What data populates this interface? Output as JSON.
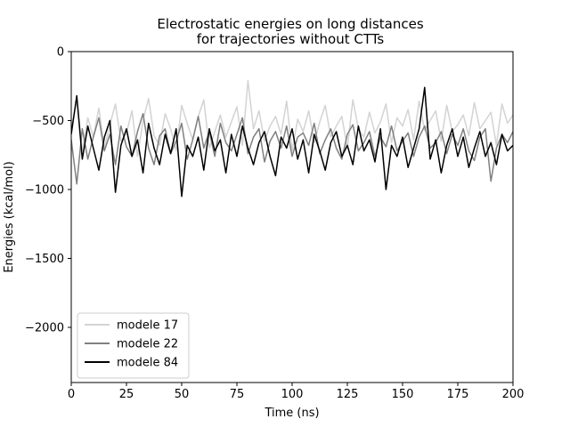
{
  "chart_data": {
    "type": "line",
    "title_line1": "Electrostatic energies on long distances",
    "title_line2": "for trajectories without CTTs",
    "xlabel": "Time (ns)",
    "ylabel": "Energies (kcal/mol)",
    "xlim": [
      0,
      200
    ],
    "ylim": [
      -2400,
      0
    ],
    "xticks": [
      0,
      25,
      50,
      75,
      100,
      125,
      150,
      175,
      200
    ],
    "xtick_labels": [
      "0",
      "25",
      "50",
      "75",
      "100",
      "125",
      "150",
      "175",
      "200"
    ],
    "yticks": [
      0,
      -500,
      -1000,
      -1500,
      -2000
    ],
    "ytick_labels": [
      "0",
      "−500",
      "−1000",
      "−1500",
      "−2000"
    ],
    "grid": false,
    "legend_position": "lower-left",
    "series": [
      {
        "name": "modele 17",
        "color": "#d3d3d3",
        "x": [
          0,
          2.5,
          5,
          7.5,
          10,
          12.5,
          15,
          17.5,
          20,
          22.5,
          25,
          27.5,
          30,
          32.5,
          35,
          37.5,
          40,
          42.5,
          45,
          47.5,
          50,
          52.5,
          55,
          57.5,
          60,
          62.5,
          65,
          67.5,
          70,
          72.5,
          75,
          77.5,
          80,
          82.5,
          85,
          87.5,
          90,
          92.5,
          95,
          97.5,
          100,
          102.5,
          105,
          107.5,
          110,
          112.5,
          115,
          117.5,
          120,
          122.5,
          125,
          127.5,
          130,
          132.5,
          135,
          137.5,
          140,
          142.5,
          145,
          147.5,
          150,
          152.5,
          155,
          157.5,
          160,
          162.5,
          165,
          167.5,
          170,
          172.5,
          175,
          177.5,
          180,
          182.5,
          185,
          187.5,
          190,
          192.5,
          195,
          197.5,
          200
        ],
        "y": [
          -560,
          -350,
          -720,
          -480,
          -620,
          -410,
          -700,
          -530,
          -380,
          -650,
          -590,
          -430,
          -760,
          -500,
          -340,
          -610,
          -680,
          -450,
          -560,
          -720,
          -390,
          -520,
          -640,
          -470,
          -350,
          -700,
          -580,
          -460,
          -620,
          -510,
          -400,
          -680,
          -210,
          -560,
          -430,
          -650,
          -540,
          -470,
          -600,
          -360,
          -720,
          -490,
          -580,
          -430,
          -660,
          -510,
          -390,
          -620,
          -540,
          -470,
          -700,
          -350,
          -560,
          -620,
          -440,
          -590,
          -510,
          -380,
          -660,
          -480,
          -540,
          -420,
          -640,
          -360,
          -570,
          -500,
          -430,
          -650,
          -390,
          -580,
          -530,
          -460,
          -610,
          -370,
          -560,
          -500,
          -440,
          -680,
          -380,
          -520,
          -460
        ]
      },
      {
        "name": "modele 22",
        "color": "#808080",
        "x": [
          0,
          2.5,
          5,
          7.5,
          10,
          12.5,
          15,
          17.5,
          20,
          22.5,
          25,
          27.5,
          30,
          32.5,
          35,
          37.5,
          40,
          42.5,
          45,
          47.5,
          50,
          52.5,
          55,
          57.5,
          60,
          62.5,
          65,
          67.5,
          70,
          72.5,
          75,
          77.5,
          80,
          82.5,
          85,
          87.5,
          90,
          92.5,
          95,
          97.5,
          100,
          102.5,
          105,
          107.5,
          110,
          112.5,
          115,
          117.5,
          120,
          122.5,
          125,
          127.5,
          130,
          132.5,
          135,
          137.5,
          140,
          142.5,
          145,
          147.5,
          150,
          152.5,
          155,
          157.5,
          160,
          162.5,
          165,
          167.5,
          170,
          172.5,
          175,
          177.5,
          180,
          182.5,
          185,
          187.5,
          190,
          192.5,
          195,
          197.5,
          200
        ],
        "y": [
          -640,
          -960,
          -560,
          -780,
          -620,
          -480,
          -720,
          -600,
          -820,
          -540,
          -690,
          -760,
          -580,
          -450,
          -700,
          -820,
          -610,
          -560,
          -740,
          -650,
          -520,
          -780,
          -640,
          -470,
          -700,
          -580,
          -760,
          -520,
          -660,
          -720,
          -600,
          -480,
          -740,
          -620,
          -560,
          -800,
          -650,
          -580,
          -700,
          -540,
          -760,
          -620,
          -590,
          -680,
          -520,
          -740,
          -640,
          -560,
          -700,
          -780,
          -600,
          -530,
          -720,
          -660,
          -580,
          -760,
          -620,
          -690,
          -540,
          -720,
          -650,
          -590,
          -760,
          -620,
          -540,
          -700,
          -660,
          -580,
          -740,
          -600,
          -680,
          -560,
          -720,
          -790,
          -620,
          -560,
          -940,
          -700,
          -600,
          -660,
          -580
        ]
      },
      {
        "name": "modele 84",
        "color": "#000000",
        "x": [
          0,
          2.5,
          5,
          7.5,
          10,
          12.5,
          15,
          17.5,
          20,
          22.5,
          25,
          27.5,
          30,
          32.5,
          35,
          37.5,
          40,
          42.5,
          45,
          47.5,
          50,
          52.5,
          55,
          57.5,
          60,
          62.5,
          65,
          67.5,
          70,
          72.5,
          75,
          77.5,
          80,
          82.5,
          85,
          87.5,
          90,
          92.5,
          95,
          97.5,
          100,
          102.5,
          105,
          107.5,
          110,
          112.5,
          115,
          117.5,
          120,
          122.5,
          125,
          127.5,
          130,
          132.5,
          135,
          137.5,
          140,
          142.5,
          145,
          147.5,
          150,
          152.5,
          155,
          157.5,
          160,
          162.5,
          165,
          167.5,
          170,
          172.5,
          175,
          177.5,
          180,
          182.5,
          185,
          187.5,
          190,
          192.5,
          195,
          197.5,
          200
        ],
        "y": [
          -600,
          -320,
          -780,
          -540,
          -700,
          -860,
          -620,
          -500,
          -1020,
          -680,
          -560,
          -760,
          -640,
          -880,
          -520,
          -700,
          -820,
          -600,
          -740,
          -560,
          -1050,
          -680,
          -760,
          -620,
          -860,
          -560,
          -720,
          -640,
          -880,
          -600,
          -760,
          -540,
          -700,
          -820,
          -660,
          -580,
          -760,
          -900,
          -620,
          -700,
          -560,
          -780,
          -640,
          -880,
          -600,
          -720,
          -860,
          -660,
          -580,
          -760,
          -680,
          -820,
          -540,
          -720,
          -640,
          -800,
          -560,
          -1000,
          -680,
          -760,
          -620,
          -840,
          -700,
          -560,
          -260,
          -780,
          -640,
          -880,
          -680,
          -560,
          -760,
          -620,
          -840,
          -700,
          -580,
          -760,
          -660,
          -820,
          -600,
          -720,
          -680
        ]
      }
    ]
  }
}
